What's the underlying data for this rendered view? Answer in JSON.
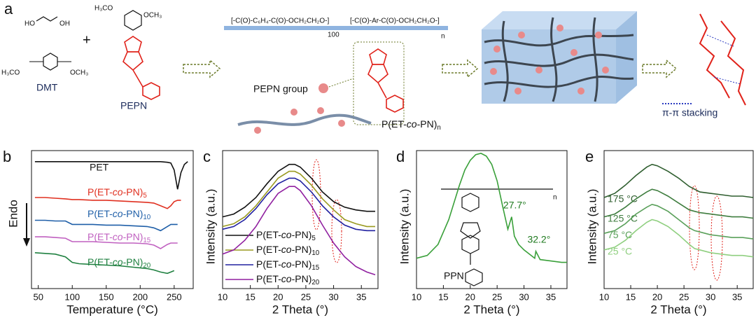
{
  "panel_a": {
    "label": "a",
    "ho": "HO",
    "oh": "OH",
    "plus": "+",
    "h3co": "H₃CO",
    "och3": "OCH₃",
    "dmt": "DMT",
    "pepn": "PEPN",
    "repeat_1": "[-C(O)-C₆H₄-C(O)-OCH₂CH₂O-]",
    "sub_100": "100",
    "repeat_2": "[-C(O)-Ar-C(O)-OCH₂CH₂O-]",
    "sub_n": "n",
    "pepn_group": "PEPN group",
    "polymer": "P(ET-co-PN)n",
    "stacking": "π-π stacking"
  },
  "panel_d": {
    "n": "n",
    "ppn": "PPN"
  },
  "chart_data": [
    {
      "type": "line",
      "panel": "b",
      "xlabel": "Temperature (°C)",
      "ylabel": "Endo",
      "xlim": [
        40,
        278
      ],
      "xticks": [
        50,
        100,
        150,
        200,
        250
      ],
      "ylim": [
        0,
        10
      ],
      "x": [
        45,
        60,
        75,
        90,
        100,
        110,
        130,
        150,
        170,
        190,
        210,
        220,
        230,
        240,
        245,
        250,
        255,
        260,
        265,
        270
      ],
      "series": [
        {
          "name": "PET",
          "color": "#111111",
          "values": [
            9.2,
            9.2,
            9.2,
            9.2,
            9.2,
            9.2,
            9.2,
            9.2,
            9.2,
            9.2,
            9.2,
            9.2,
            9.2,
            9.15,
            9.1,
            8.6,
            7.2,
            8.4,
            9.0,
            9.2
          ]
        },
        {
          "name": "P(ET-co-PN)5",
          "color": "#e03020",
          "values": [
            6.6,
            6.6,
            6.55,
            6.5,
            6.45,
            6.45,
            6.4,
            6.4,
            6.35,
            6.3,
            6.25,
            6.2,
            6.0,
            5.8,
            6.0,
            6.3,
            6.4,
            6.4,
            null,
            null
          ]
        },
        {
          "name": "P(ET-co-PN)10",
          "color": "#1f5fa8",
          "values": [
            4.95,
            4.95,
            4.9,
            4.9,
            4.65,
            4.65,
            4.65,
            4.6,
            4.6,
            4.55,
            4.5,
            4.4,
            4.2,
            4.5,
            4.65,
            4.65,
            4.65,
            null,
            null,
            null
          ]
        },
        {
          "name": "P(ET-co-PN)15",
          "color": "#c060c0",
          "values": [
            3.75,
            3.75,
            3.7,
            3.65,
            3.4,
            3.4,
            3.4,
            3.35,
            3.3,
            3.3,
            3.25,
            3.15,
            2.9,
            3.2,
            3.3,
            3.3,
            3.3,
            null,
            null,
            null
          ]
        },
        {
          "name": "P(ET-co-PN)20",
          "color": "#1f8040",
          "values": [
            2.6,
            2.55,
            2.5,
            2.3,
            1.9,
            1.8,
            1.75,
            1.7,
            1.65,
            1.55,
            1.45,
            1.35,
            1.2,
            1.1,
            1.2,
            1.3,
            null,
            null,
            null,
            null
          ]
        }
      ]
    },
    {
      "type": "line",
      "panel": "c",
      "xlabel": "2 Theta (°)",
      "ylabel": "Intensity (a.u.)",
      "xlim": [
        10,
        38
      ],
      "xticks": [
        10,
        15,
        20,
        25,
        30,
        35
      ],
      "ylim": [
        0,
        10
      ],
      "x": [
        10,
        12,
        14,
        16,
        18,
        20,
        22,
        23,
        24,
        26,
        27,
        28,
        30,
        32,
        34,
        36,
        37.5
      ],
      "series": [
        {
          "name": "P(ET-co-PN)5",
          "color": "#111111",
          "values": [
            5.2,
            5.4,
            5.9,
            6.6,
            7.6,
            8.5,
            9.0,
            9.0,
            8.8,
            8.0,
            7.5,
            7.0,
            6.3,
            5.9,
            5.7,
            5.6,
            5.6
          ]
        },
        {
          "name": "P(ET-co-PN)10",
          "color": "#9a9a20",
          "values": [
            4.5,
            4.7,
            5.2,
            6.0,
            7.0,
            8.0,
            8.5,
            8.5,
            8.3,
            7.5,
            7.0,
            6.5,
            5.7,
            5.0,
            4.7,
            4.5,
            4.5
          ]
        },
        {
          "name": "P(ET-co-PN)15",
          "color": "#2020a0",
          "values": [
            4.3,
            4.5,
            5.0,
            5.8,
            6.8,
            7.6,
            8.0,
            8.0,
            7.8,
            7.0,
            6.5,
            6.0,
            5.2,
            4.6,
            4.3,
            4.2,
            4.2
          ]
        },
        {
          "name": "P(ET-co-PN)20",
          "color": "#9020a0",
          "values": [
            2.5,
            2.8,
            3.5,
            4.5,
            5.8,
            6.9,
            7.4,
            7.4,
            7.1,
            6.0,
            5.3,
            4.6,
            3.3,
            2.3,
            1.6,
            1.2,
            1.0
          ]
        }
      ]
    },
    {
      "type": "line",
      "panel": "d",
      "xlabel": "2 Theta (°)",
      "ylabel": "Intensity (a.u.)",
      "xlim": [
        10,
        38
      ],
      "xticks": [
        10,
        15,
        20,
        25,
        30,
        35
      ],
      "ylim": [
        0,
        10
      ],
      "x": [
        10,
        12,
        14,
        16,
        18,
        19,
        20,
        21,
        22,
        23,
        24,
        25,
        26,
        27,
        27.7,
        28.2,
        29,
        30,
        32,
        32.2,
        33,
        35,
        37,
        38
      ],
      "series": [
        {
          "name": "PPN",
          "color": "#3aa03a",
          "values": [
            2.2,
            2.4,
            3.2,
            5.0,
            7.5,
            8.6,
            9.3,
            9.7,
            9.8,
            9.6,
            9.0,
            7.8,
            6.0,
            4.3,
            5.2,
            3.8,
            3.2,
            2.8,
            2.2,
            2.7,
            2.1,
            2.0,
            1.9,
            1.9
          ]
        }
      ],
      "annotations": [
        {
          "text": "27.7°",
          "x": 27.7
        },
        {
          "text": "32.2°",
          "x": 32.2
        }
      ]
    },
    {
      "type": "line",
      "panel": "e",
      "xlabel": "2 Theta (°)",
      "ylabel": "Intensity (a.u.)",
      "xlim": [
        10,
        38
      ],
      "xticks": [
        10,
        15,
        20,
        25,
        30,
        35
      ],
      "ylim": [
        0,
        10
      ],
      "x": [
        10,
        12,
        14,
        16,
        18,
        19,
        20,
        22,
        24,
        26,
        27,
        28,
        30,
        32,
        34,
        36,
        38
      ],
      "series": [
        {
          "name": "175 °C",
          "color": "#2f5e2f",
          "values": [
            6.6,
            6.9,
            7.5,
            8.2,
            8.8,
            9.0,
            8.9,
            8.5,
            8.0,
            7.4,
            7.2,
            7.0,
            6.9,
            6.8,
            6.7,
            6.7,
            6.6
          ]
        },
        {
          "name": "125 °C",
          "color": "#3f7d3f",
          "values": [
            5.2,
            5.4,
            5.9,
            6.5,
            7.0,
            7.2,
            7.1,
            6.7,
            6.2,
            5.7,
            5.6,
            5.5,
            5.4,
            5.3,
            5.2,
            5.2,
            5.1
          ]
        },
        {
          "name": "75 °C",
          "color": "#5aa05a",
          "values": [
            4.0,
            4.2,
            4.7,
            5.4,
            5.9,
            6.1,
            6.0,
            5.6,
            5.0,
            4.4,
            4.2,
            4.1,
            3.9,
            3.8,
            3.7,
            3.7,
            3.6
          ]
        },
        {
          "name": "25 °C",
          "color": "#8fcf7f",
          "values": [
            2.8,
            3.0,
            3.5,
            4.2,
            4.8,
            5.0,
            4.9,
            4.5,
            3.9,
            3.2,
            2.9,
            2.8,
            2.6,
            2.5,
            2.4,
            2.4,
            2.3
          ]
        }
      ]
    }
  ]
}
